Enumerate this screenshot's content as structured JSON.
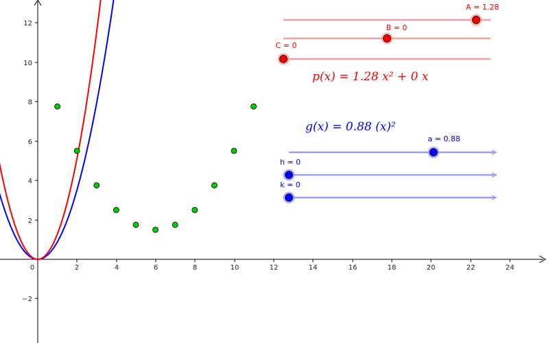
{
  "colors": {
    "red": "#ff0000",
    "blue": "#0000ff",
    "green": "#00cc00",
    "red_track": "#f4a0a0",
    "blue_track": "#9c9cf8"
  },
  "axes": {
    "x_ticks": [
      "0",
      "2",
      "4",
      "6",
      "8",
      "10",
      "12",
      "14",
      "16",
      "18",
      "20",
      "22",
      "24"
    ],
    "y_ticks": [
      "12",
      "10",
      "8",
      "6",
      "4",
      "2",
      "−2"
    ]
  },
  "points": [
    {
      "x": 1,
      "y": 7.75
    },
    {
      "x": 2,
      "y": 5.5
    },
    {
      "x": 3,
      "y": 3.75
    },
    {
      "x": 4,
      "y": 2.5
    },
    {
      "x": 5,
      "y": 1.75
    },
    {
      "x": 6,
      "y": 1.5
    },
    {
      "x": 7,
      "y": 1.75
    },
    {
      "x": 8,
      "y": 2.5
    },
    {
      "x": 9,
      "y": 3.75
    },
    {
      "x": 10,
      "y": 5.5
    },
    {
      "x": 11,
      "y": 7.75
    }
  ],
  "functions": {
    "p": {
      "coef": 1.28,
      "formula": "p(x) = 1.28 x² + 0 x"
    },
    "g": {
      "coef": 0.88,
      "formula": "g(x) = 0.88 (x)²"
    }
  },
  "sliders": {
    "A": {
      "label": "A = 1.28",
      "fraction": 0.93
    },
    "B": {
      "label": "B = 0",
      "fraction": 0.5
    },
    "C": {
      "label": "C = 0",
      "fraction": 0.0
    },
    "a": {
      "label": "a = 0.88",
      "fraction": 0.7
    },
    "h": {
      "label": "h = 0",
      "fraction": 0.0
    },
    "k": {
      "label": "k = 0",
      "fraction": 0.0
    }
  }
}
